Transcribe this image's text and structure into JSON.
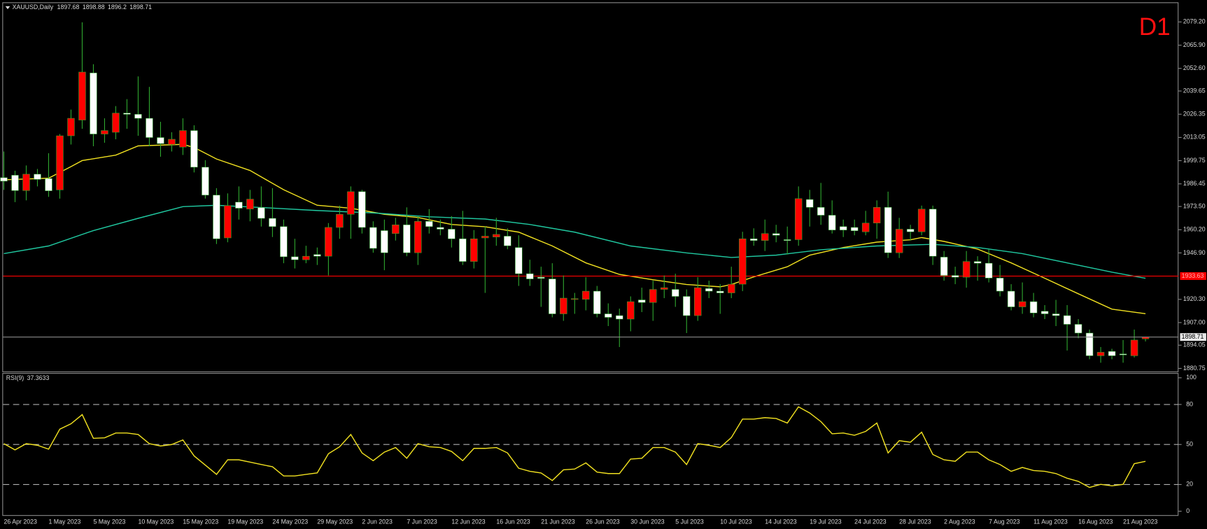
{
  "chart_data": [
    {
      "type": "candlestick",
      "symbol": "XAUUSD,Daily",
      "timeframe_badge": "D1",
      "categories": [
        "26 Apr 2023",
        null,
        null,
        null,
        "1 May 2023",
        null,
        null,
        null,
        "5 May 2023",
        null,
        null,
        null,
        "10 May 2023",
        null,
        null,
        null,
        "15 May 2023",
        null,
        null,
        null,
        "19 May 2023",
        null,
        null,
        null,
        "24 May 2023",
        null,
        null,
        null,
        "29 May 2023",
        null,
        null,
        null,
        "2 Jun 2023",
        null,
        null,
        null,
        "7 Jun 2023",
        null,
        null,
        null,
        "12 Jun 2023",
        null,
        null,
        null,
        "16 Jun 2023",
        null,
        null,
        null,
        "21 Jun 2023",
        null,
        null,
        null,
        "26 Jun 2023",
        null,
        null,
        null,
        "30 Jun 2023",
        null,
        null,
        null,
        "5 Jul 2023",
        null,
        null,
        null,
        "10 Jul 2023",
        null,
        null,
        null,
        "14 Jul 2023",
        null,
        null,
        null,
        "19 Jul 2023",
        null,
        null,
        null,
        "24 Jul 2023",
        null,
        null,
        null,
        "28 Jul 2023",
        null,
        null,
        null,
        "2 Aug 2023",
        null,
        null,
        null,
        "7 Aug 2023",
        null,
        null,
        null,
        "11 Aug 2023",
        null,
        null,
        null,
        "16 Aug 2023",
        null,
        null,
        null,
        "21 Aug 2023",
        null,
        null
      ],
      "ohlc": [
        [
          1990,
          2005,
          1983,
          1988
        ],
        [
          1991.4,
          1994,
          1976,
          1982.6
        ],
        [
          1982.6,
          1997,
          1977,
          1992
        ],
        [
          1992,
          1995,
          1985,
          1989
        ],
        [
          1989.5,
          2004,
          1979,
          1982.5
        ],
        [
          1983,
          2015,
          1978,
          2014
        ],
        [
          2014,
          2029,
          2009,
          2024
        ],
        [
          2023,
          2079,
          2018,
          2050.5
        ],
        [
          2050,
          2055,
          2008,
          2015
        ],
        [
          2015,
          2024,
          2010,
          2017
        ],
        [
          2016,
          2031,
          2012,
          2027
        ],
        [
          2027,
          2035,
          2018,
          2026.3
        ],
        [
          2026.3,
          2048,
          2014,
          2024
        ],
        [
          2024,
          2042,
          2008,
          2013
        ],
        [
          2013,
          2022,
          2002,
          2009.5
        ],
        [
          2009,
          2016,
          2005,
          2012
        ],
        [
          2007.5,
          2024,
          2003,
          2017
        ],
        [
          2017,
          2020,
          1993,
          1996
        ],
        [
          1996,
          2000,
          1978,
          1980
        ],
        [
          1980,
          1984,
          1952,
          1955
        ],
        [
          1955.5,
          1981,
          1953,
          1974
        ],
        [
          1976,
          1985,
          1966,
          1972.5
        ],
        [
          1972,
          1983,
          1965,
          1977.7
        ],
        [
          1972.9,
          1985,
          1962,
          1966.7
        ],
        [
          1966.7,
          1984,
          1956,
          1962
        ],
        [
          1962,
          1966,
          1941,
          1944.7
        ],
        [
          1944.7,
          1955,
          1938,
          1943
        ],
        [
          1943,
          1951,
          1941,
          1945
        ],
        [
          1946,
          1950,
          1940,
          1945
        ],
        [
          1945,
          1964,
          1934,
          1961.5
        ],
        [
          1961.5,
          1974,
          1955,
          1969
        ],
        [
          1969,
          1985,
          1955,
          1982
        ],
        [
          1982,
          1983,
          1958,
          1961.5
        ],
        [
          1961.5,
          1965,
          1947,
          1949.5
        ],
        [
          1959.7,
          1966,
          1937,
          1947
        ],
        [
          1958,
          1967,
          1954,
          1963
        ],
        [
          1963,
          1973,
          1945,
          1947
        ],
        [
          1947,
          1968,
          1940,
          1965
        ],
        [
          1965,
          1972,
          1958,
          1962
        ],
        [
          1961.5,
          1966,
          1957,
          1960.5
        ],
        [
          1960.5,
          1968,
          1950,
          1955
        ],
        [
          1955,
          1971,
          1940,
          1942
        ],
        [
          1942,
          1960,
          1938,
          1955
        ],
        [
          1955.5,
          1962,
          1924,
          1956.5
        ],
        [
          1956,
          1967,
          1951,
          1957.5
        ],
        [
          1956.5,
          1961,
          1949,
          1951
        ],
        [
          1950,
          1957,
          1928,
          1935
        ],
        [
          1935,
          1943,
          1928,
          1932
        ],
        [
          1933,
          1939,
          1916,
          1932.3
        ],
        [
          1932,
          1941,
          1910,
          1912
        ],
        [
          1912,
          1934,
          1908,
          1921
        ],
        [
          1920.5,
          1924,
          1912,
          1920.7
        ],
        [
          1920.3,
          1933,
          1914,
          1925
        ],
        [
          1925,
          1928,
          1910,
          1912
        ],
        [
          1912,
          1918,
          1905,
          1910
        ],
        [
          1911,
          1915,
          1893,
          1909
        ],
        [
          1909,
          1922,
          1902,
          1919
        ],
        [
          1920,
          1927,
          1913,
          1918.5
        ],
        [
          1918.5,
          1931,
          1908,
          1926
        ],
        [
          1926,
          1934,
          1921,
          1927
        ],
        [
          1926,
          1935,
          1916,
          1922
        ],
        [
          1922,
          1926,
          1901,
          1911
        ],
        [
          1911,
          1933,
          1908,
          1927
        ],
        [
          1926.5,
          1931,
          1921,
          1925
        ],
        [
          1925,
          1929,
          1912,
          1924
        ],
        [
          1924,
          1939,
          1921,
          1929
        ],
        [
          1929,
          1959,
          1925,
          1955
        ],
        [
          1955,
          1961,
          1951,
          1954
        ],
        [
          1954,
          1966,
          1948,
          1958
        ],
        [
          1958,
          1963,
          1953,
          1957
        ],
        [
          1954.5,
          1962,
          1946,
          1954
        ],
        [
          1954.5,
          1985,
          1951,
          1978
        ],
        [
          1977.5,
          1983,
          1962,
          1973
        ],
        [
          1973,
          1987,
          1963,
          1968.5
        ],
        [
          1968.5,
          1977,
          1958,
          1960
        ],
        [
          1962,
          1966,
          1956,
          1960
        ],
        [
          1961.5,
          1966,
          1957,
          1959.6
        ],
        [
          1959,
          1971,
          1957,
          1964
        ],
        [
          1964,
          1977,
          1955,
          1973
        ],
        [
          1973,
          1982,
          1944,
          1947
        ],
        [
          1947,
          1967,
          1944,
          1960.5
        ],
        [
          1960.5,
          1963,
          1954,
          1959
        ],
        [
          1959,
          1974,
          1957,
          1972
        ],
        [
          1972,
          1974,
          1940,
          1945
        ],
        [
          1944.5,
          1948,
          1931,
          1934
        ],
        [
          1934,
          1939,
          1929,
          1933
        ],
        [
          1933,
          1948,
          1927,
          1942
        ],
        [
          1942,
          1945,
          1931,
          1941
        ],
        [
          1941,
          1949,
          1930,
          1932.5
        ],
        [
          1932.5,
          1940,
          1922,
          1925
        ],
        [
          1925,
          1929,
          1914,
          1916
        ],
        [
          1916,
          1930,
          1912,
          1919
        ],
        [
          1919,
          1924,
          1910,
          1912.5
        ],
        [
          1913.5,
          1917,
          1909,
          1912
        ],
        [
          1912,
          1920,
          1905,
          1911
        ],
        [
          1911,
          1917,
          1891,
          1906
        ],
        [
          1906,
          1909,
          1898,
          1901
        ],
        [
          1901,
          1903,
          1886,
          1888
        ],
        [
          1888,
          1893,
          1884,
          1890
        ],
        [
          1890.5,
          1892,
          1886,
          1888
        ],
        [
          1889,
          1897,
          1884,
          1888.5
        ],
        [
          1888,
          1903,
          1887,
          1897
        ],
        [
          1897.68,
          1898.88,
          1896.2,
          1898.71
        ]
      ],
      "up_color": "#ff0000",
      "down_color": "#ffffff",
      "wick_color": "#2fa82f",
      "price_line_color": "#8c8c8c",
      "overlays": [
        {
          "color": "#f0e020",
          "x": [
            0,
            4,
            6,
            7,
            10,
            12,
            16,
            17,
            19,
            22,
            25,
            28,
            31,
            34,
            37,
            40,
            43,
            46,
            49,
            52,
            55,
            58,
            61,
            64,
            65,
            67,
            70,
            72,
            75,
            78,
            81,
            82,
            84,
            87,
            90,
            93,
            96,
            99,
            102
          ],
          "values": [
            1988.8,
            1989.7,
            1996.3,
            1999.8,
            2002.9,
            2008.2,
            2009.1,
            2007.3,
            2000.7,
            1994.1,
            1983.1,
            1974.2,
            1972.5,
            1969,
            1967.2,
            1963.2,
            1961.9,
            1958.8,
            1950.9,
            1941.2,
            1934.6,
            1931.5,
            1928.8,
            1927.5,
            1928.8,
            1933.2,
            1939,
            1945.6,
            1950,
            1953.1,
            1954.4,
            1955.7,
            1953.5,
            1949.1,
            1941.2,
            1932.4,
            1923.5,
            1914.7,
            1912.1
          ]
        },
        {
          "color": "#20c8a0",
          "x": [
            0,
            4,
            8,
            12,
            16,
            19,
            23,
            28,
            33,
            38,
            43,
            47,
            51,
            56,
            61,
            65,
            69,
            73,
            78,
            83,
            87,
            91,
            95,
            99,
            102
          ],
          "values": [
            1946.5,
            1950.9,
            1959.7,
            1966.7,
            1973.4,
            1974.2,
            1972.9,
            1971.2,
            1969.8,
            1967.6,
            1966.3,
            1963.2,
            1958.8,
            1950.9,
            1946.9,
            1944.3,
            1945.6,
            1948.7,
            1950.9,
            1951.8,
            1950,
            1946.5,
            1941.2,
            1935.9,
            1932.4
          ]
        }
      ],
      "hline": {
        "value": 1933.63,
        "color": "#ff0000"
      },
      "ylim": [
        1879,
        2090
      ],
      "yticks": [
        {
          "value": 2079.2,
          "label": "2079.20"
        },
        {
          "value": 2065.9,
          "label": "2065.90"
        },
        {
          "value": 2052.6,
          "label": "2052.60"
        },
        2039.65,
        2026.35,
        2013.05,
        1999.75,
        1986.45,
        {
          "value": 1973.5,
          "label": "1973.50"
        },
        {
          "value": 1960.2,
          "label": "1960.20"
        },
        {
          "value": 1946.9,
          "label": "1946.90"
        },
        {
          "value": 1920.3,
          "label": "1920.30"
        },
        {
          "value": 1907,
          "label": "1907.00"
        },
        1894.05,
        1880.75
      ]
    },
    {
      "type": "line",
      "title": "RSI(9)",
      "color": "#f0e020",
      "values": [
        50.6,
        46,
        50.6,
        49.4,
        46.5,
        61.5,
        65.5,
        72.4,
        54.6,
        55,
        58.6,
        58.6,
        57.5,
        50.6,
        48.9,
        50,
        53.4,
        41.4,
        34.5,
        27.6,
        38.5,
        38.5,
        36.8,
        35,
        33.3,
        26.4,
        26.4,
        27.6,
        28.7,
        43.1,
        48.3,
        57.5,
        43.7,
        37.9,
        44.3,
        47.7,
        39.7,
        50.6,
        48.3,
        47.7,
        44.8,
        37.9,
        47.1,
        47.1,
        47.7,
        43.7,
        32.2,
        29.9,
        28.7,
        23,
        31,
        31.6,
        36.2,
        29.3,
        28.2,
        28.2,
        39.1,
        39.7,
        47.7,
        47.7,
        44.3,
        35,
        50.6,
        49.4,
        47.7,
        55.2,
        69,
        69,
        70.1,
        69.5,
        66.1,
        78.2,
        73.6,
        67.2,
        58,
        58.6,
        56.9,
        59.8,
        66.1,
        43.7,
        52.9,
        51.7,
        59.2,
        42.5,
        38.5,
        37.4,
        44.3,
        44.3,
        38.5,
        35,
        29.9,
        32.8,
        30.5,
        29.9,
        28.2,
        24.7,
        22.4,
        17.8,
        20.1,
        19,
        20.1,
        35.6,
        37.3633
      ],
      "levels": [
        80,
        50,
        20
      ],
      "ylim": [
        -3.5,
        103
      ],
      "yticks": [
        100,
        80,
        50,
        20,
        0
      ]
    }
  ]
}
